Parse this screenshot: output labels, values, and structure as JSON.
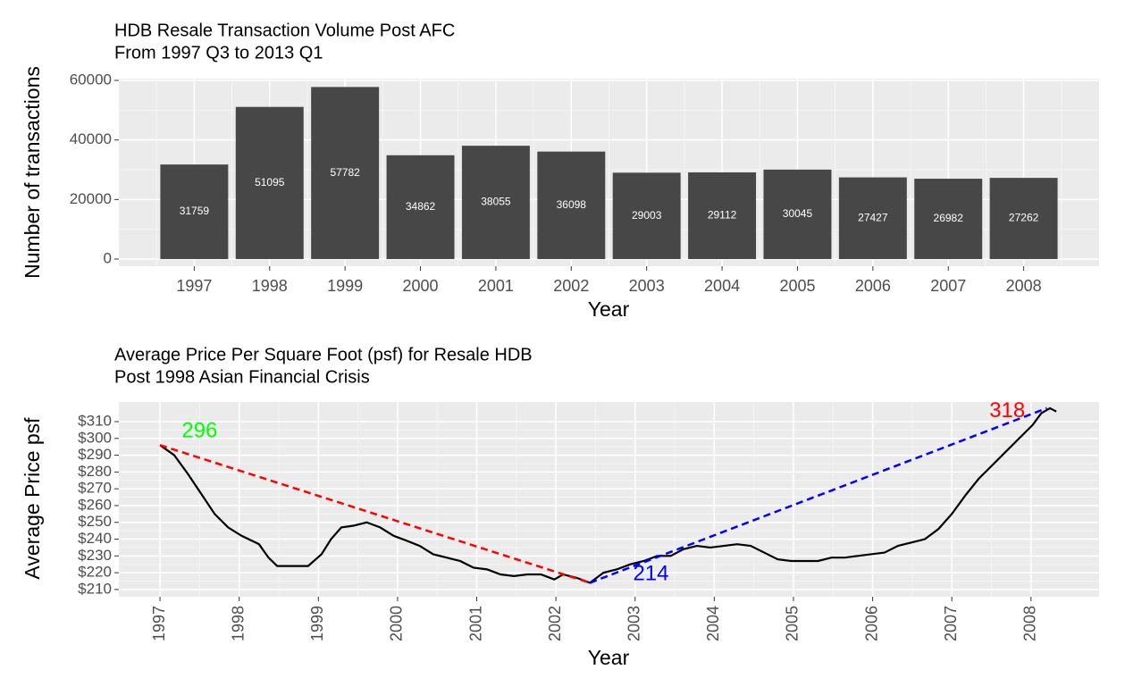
{
  "chart_data": [
    {
      "type": "bar",
      "title": "HDB Resale Transaction Volume Post AFC",
      "subtitle": "From 1997 Q3 to 2013 Q1",
      "x_label": "Year",
      "y_label": "Number of transactions",
      "categories": [
        "1997",
        "1998",
        "1999",
        "2000",
        "2001",
        "2002",
        "2003",
        "2004",
        "2005",
        "2006",
        "2007",
        "2008"
      ],
      "values": [
        31759,
        51095,
        57782,
        34862,
        38055,
        36098,
        29003,
        29112,
        30045,
        27427,
        26982,
        27262
      ],
      "color": "#474747",
      "ylim": [
        -2400,
        60600
      ],
      "yticks": [
        0,
        20000,
        40000,
        60000
      ],
      "grid": true
    },
    {
      "type": "line",
      "title": "Average Price Per Square Foot (psf) for Resale HDB",
      "subtitle": "Post 1998 Asian Financial Crisis",
      "x_label": "Year",
      "y_label": "Average Price psf",
      "x": [
        1997.0,
        1997.18,
        1997.35,
        1997.52,
        1997.69,
        1997.86,
        1998.03,
        1998.25,
        1998.37,
        1998.48,
        1998.65,
        1998.87,
        1999.04,
        1999.16,
        1999.29,
        1999.44,
        1999.61,
        1999.78,
        1999.95,
        2000.12,
        2000.28,
        2000.45,
        2000.62,
        2000.79,
        2000.96,
        2001.13,
        2001.3,
        2001.47,
        2001.64,
        2001.81,
        2001.98,
        2002.09,
        2002.26,
        2002.43,
        2002.6,
        2002.77,
        2002.94,
        2003.11,
        2003.28,
        2003.45,
        2003.61,
        2003.78,
        2003.95,
        2004.12,
        2004.29,
        2004.46,
        2004.63,
        2004.8,
        2004.97,
        2005.14,
        2005.31,
        2005.48,
        2005.65,
        2005.81,
        2005.98,
        2006.15,
        2006.32,
        2006.49,
        2006.66,
        2006.83,
        2007.0,
        2007.17,
        2007.34,
        2007.51,
        2007.68,
        2007.85,
        2008.02,
        2008.13,
        2008.24,
        2008.32
      ],
      "series": [
        {
          "name": "Average Price psf",
          "color": "#000000",
          "values": [
            296,
            290,
            279,
            267,
            255,
            247,
            242,
            237,
            229,
            224,
            224,
            224,
            231,
            240,
            247,
            248,
            250,
            247,
            242,
            239,
            236,
            231,
            229,
            227,
            223,
            222,
            219,
            218,
            219,
            219,
            216,
            219,
            217,
            214,
            220,
            222,
            225,
            227,
            230,
            230,
            234,
            236,
            235,
            236,
            237,
            236,
            232,
            228,
            227,
            227,
            227,
            229,
            229,
            230,
            231,
            232,
            236,
            238,
            240,
            246,
            255,
            266,
            276,
            284,
            292,
            300,
            308,
            315,
            318,
            316
          ]
        }
      ],
      "segments": [
        {
          "x": [
            1997.0,
            2002.43
          ],
          "y": [
            296,
            214
          ],
          "color": "#ff0000"
        },
        {
          "x": [
            2002.43,
            2008.2
          ],
          "y": [
            214,
            318
          ],
          "color": "#0000ff"
        }
      ],
      "annotations": [
        {
          "label": "296",
          "x": 1997.5,
          "y": 304,
          "color": "#00ff00"
        },
        {
          "label": "214",
          "x": 2003.2,
          "y": 219,
          "color": "#0000ff"
        },
        {
          "label": "318",
          "x": 2007.7,
          "y": 316,
          "color": "#ff0000"
        }
      ],
      "xlim": [
        1996.48,
        2008.86
      ],
      "xticks": [
        1997,
        1998,
        1999,
        2000,
        2001,
        2002,
        2003,
        2004,
        2005,
        2006,
        2007,
        2008
      ],
      "ylim": [
        205.7,
        321.7
      ],
      "yticks": [
        {
          "value": 210,
          "label": "$210"
        },
        {
          "value": 220,
          "label": "$220"
        },
        {
          "value": 230,
          "label": "$230"
        },
        {
          "value": 240,
          "label": "$240"
        },
        {
          "value": 250,
          "label": "$250"
        },
        {
          "value": 260,
          "label": "$260"
        },
        {
          "value": 270,
          "label": "$270"
        },
        {
          "value": 280,
          "label": "$280"
        },
        {
          "value": 290,
          "label": "$290"
        },
        {
          "value": 300,
          "label": "$300"
        },
        {
          "value": 310,
          "label": "$310"
        }
      ],
      "grid": true
    }
  ]
}
